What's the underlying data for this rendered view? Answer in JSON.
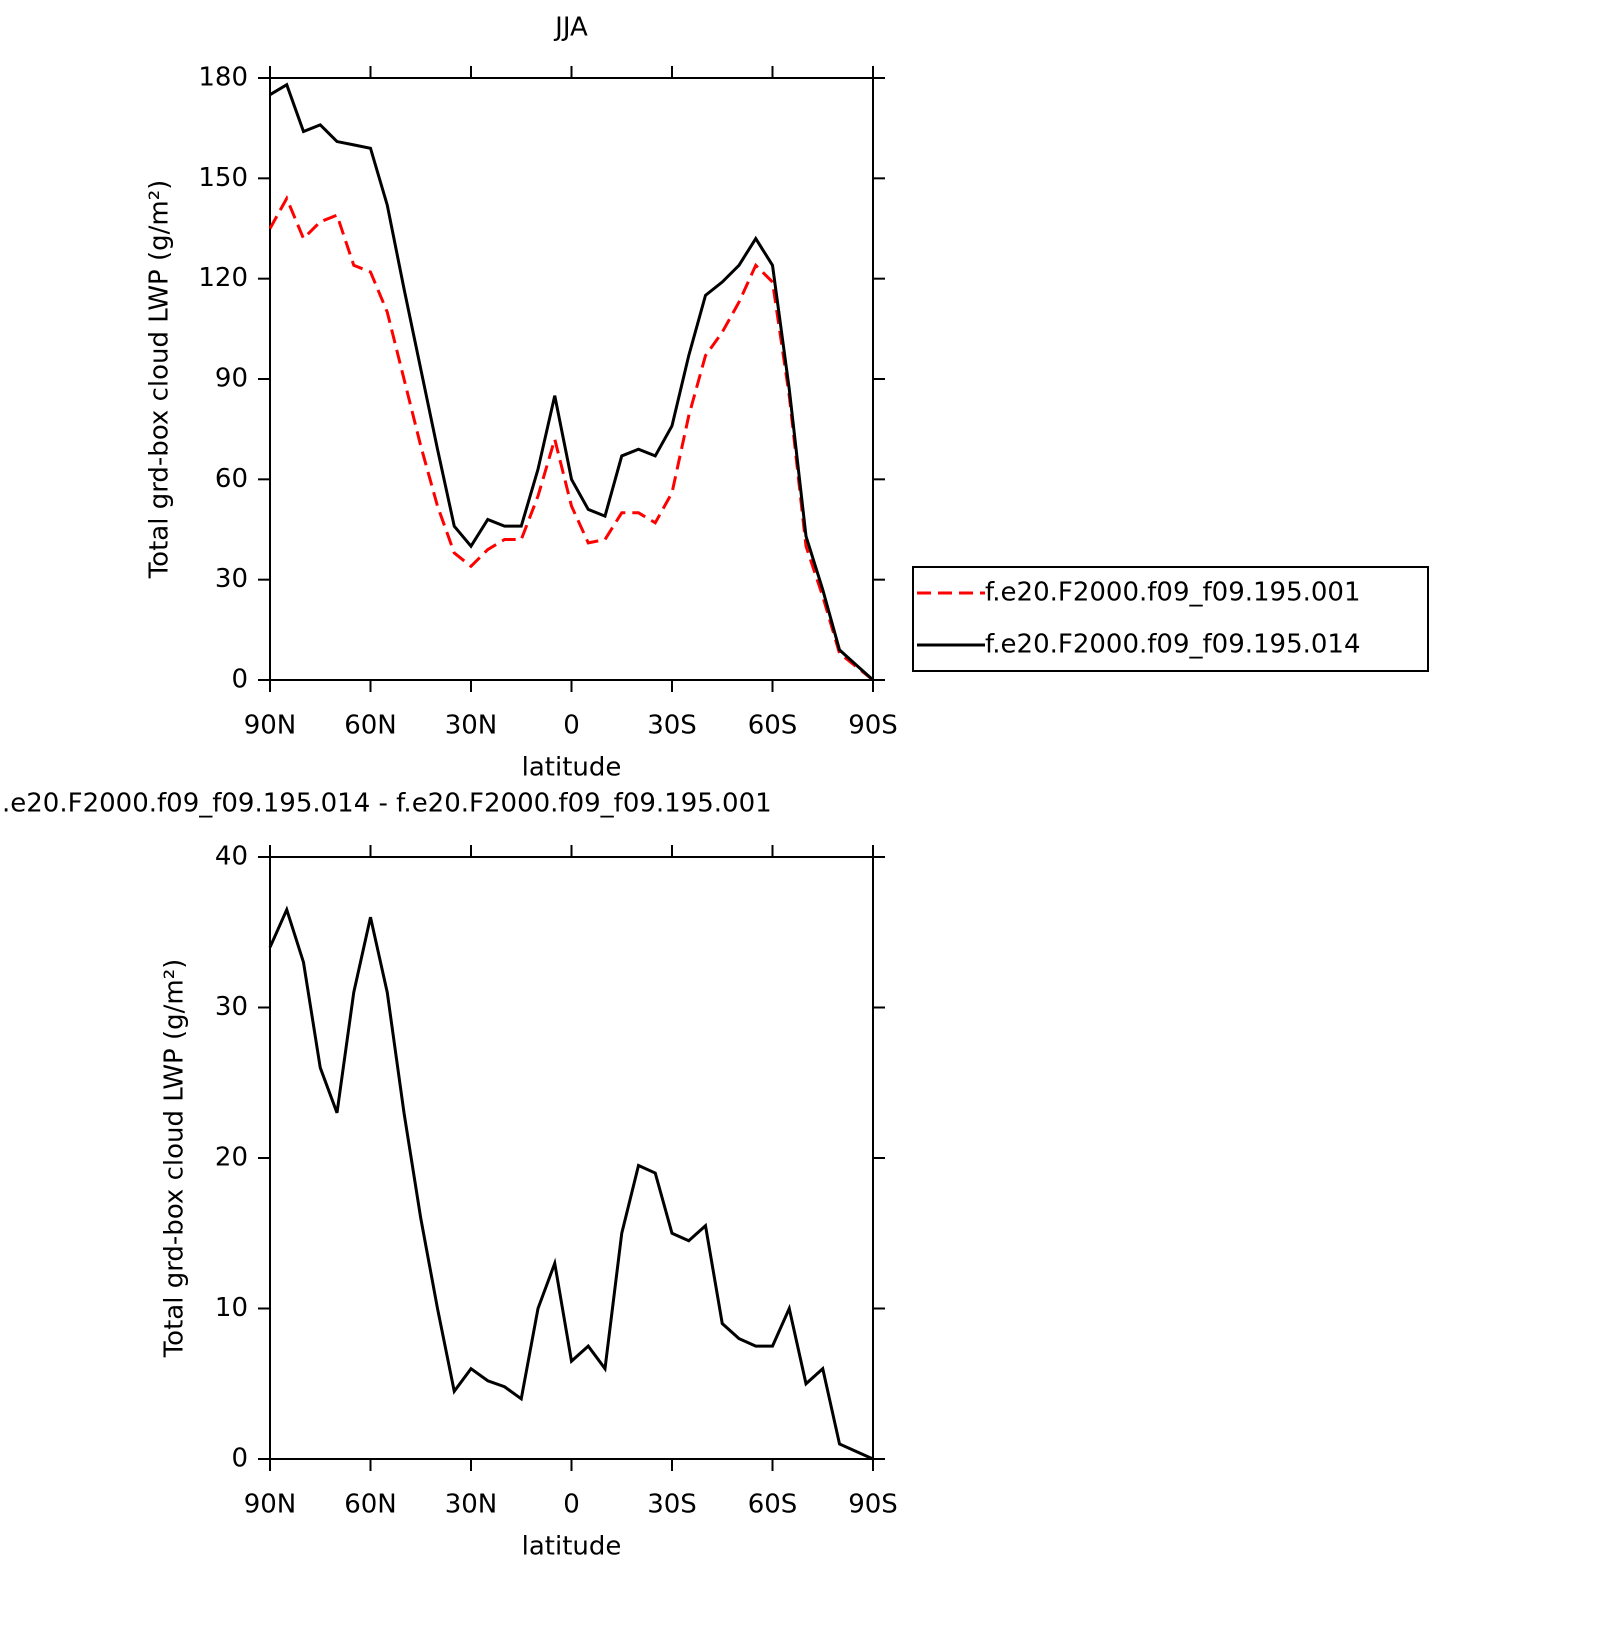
{
  "chart_data": [
    {
      "type": "line",
      "title": "JJA",
      "x_label": "latitude",
      "y_label": "Total grd-box cloud LWP (g/m²)",
      "x": [
        90,
        85,
        80,
        75,
        70,
        65,
        60,
        55,
        50,
        45,
        40,
        35,
        30,
        25,
        20,
        15,
        10,
        5,
        0,
        -5,
        -10,
        -15,
        -20,
        -25,
        -30,
        -35,
        -40,
        -45,
        -50,
        -55,
        -60,
        -65,
        -70,
        -75,
        -80,
        -85,
        -90
      ],
      "xlim": [
        90,
        -90
      ],
      "xticks": [
        {
          "value": 90,
          "label": "90N"
        },
        {
          "value": 60,
          "label": "60N"
        },
        {
          "value": 30,
          "label": "30N"
        },
        0,
        {
          "value": -30,
          "label": "30S"
        },
        {
          "value": -60,
          "label": "60S"
        },
        {
          "value": -90,
          "label": "90S"
        }
      ],
      "ylim": [
        0,
        180
      ],
      "yticks": [
        0,
        30,
        60,
        90,
        120,
        150,
        180
      ],
      "legend": "right",
      "series": [
        {
          "name": "f.e20.F2000.f09_f09.195.001",
          "color": "#ff0000",
          "dash": true,
          "values": [
            135,
            144,
            132,
            137,
            139,
            124,
            122,
            110,
            90,
            70,
            52,
            38,
            34,
            39,
            42,
            42,
            55,
            72,
            52,
            41,
            42,
            50,
            50,
            47,
            56,
            79,
            97,
            104,
            113,
            124,
            119,
            85,
            40,
            25,
            8,
            4,
            0
          ]
        },
        {
          "name": "f.e20.F2000.f09_f09.195.014",
          "color": "#000000",
          "dash": false,
          "values": [
            175,
            178,
            164,
            166,
            161,
            160,
            159,
            142,
            117,
            93,
            69,
            46,
            40,
            48,
            46,
            46,
            63,
            85,
            60,
            51,
            49,
            67,
            69,
            67,
            76,
            97,
            115,
            119,
            124,
            132,
            124,
            87,
            43,
            27,
            9,
            4.5,
            0
          ]
        }
      ]
    },
    {
      "type": "line",
      "title": ".e20.F2000.f09_f09.195.014 - f.e20.F2000.f09_f09.195.001",
      "x_label": "latitude",
      "y_label": "Total grd-box cloud LWP (g/m²)",
      "x": [
        90,
        85,
        80,
        75,
        70,
        65,
        60,
        55,
        50,
        45,
        40,
        35,
        30,
        25,
        20,
        15,
        10,
        5,
        0,
        -5,
        -10,
        -15,
        -20,
        -25,
        -30,
        -35,
        -40,
        -45,
        -50,
        -55,
        -60,
        -65,
        -70,
        -75,
        -80,
        -85,
        -90
      ],
      "xlim": [
        90,
        -90
      ],
      "xticks": [
        {
          "value": 90,
          "label": "90N"
        },
        {
          "value": 60,
          "label": "60N"
        },
        {
          "value": 30,
          "label": "30N"
        },
        0,
        {
          "value": -30,
          "label": "30S"
        },
        {
          "value": -60,
          "label": "60S"
        },
        {
          "value": -90,
          "label": "90S"
        }
      ],
      "ylim": [
        0,
        40
      ],
      "yticks": [
        0,
        10,
        20,
        30,
        40
      ],
      "series": [
        {
          "color": "#000000",
          "values": [
            34,
            36.5,
            33,
            26,
            23,
            31,
            36,
            31,
            23,
            16,
            10,
            4.5,
            6,
            5.2,
            4.8,
            4,
            10,
            13,
            6.5,
            7.5,
            6,
            15,
            19.5,
            19,
            15,
            14.5,
            15.5,
            9,
            8,
            7.5,
            7.5,
            10,
            5,
            6,
            1,
            0.5,
            0
          ]
        }
      ]
    }
  ]
}
